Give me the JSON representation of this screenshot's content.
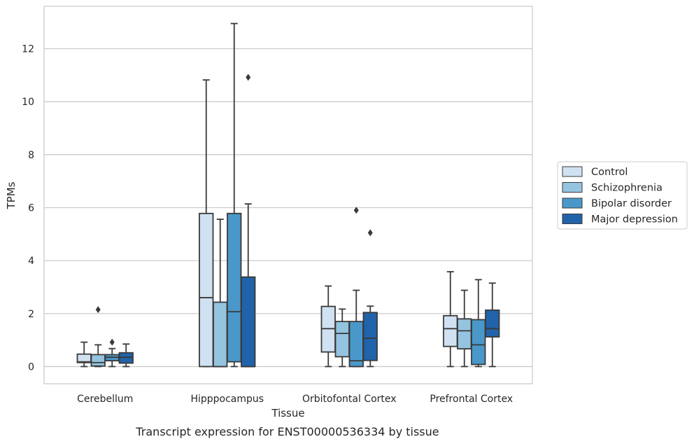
{
  "chart_data": {
    "type": "box",
    "xlabel": "Tissue",
    "ylabel": "TPMs",
    "caption": "Transcript expression for ENST00000536334 by tissue",
    "categories": [
      "Cerebellum",
      "Hipppocampus",
      "Orbitofontal Cortex",
      "Prefrontal Cortex"
    ],
    "ylim": [
      -0.65,
      13.6
    ],
    "yticks": [
      0,
      2,
      4,
      6,
      8,
      10,
      12
    ],
    "grid": "horizontal",
    "legend_position": "right",
    "series": [
      {
        "name": "Control",
        "color": "#d0e1f2",
        "boxes": [
          {
            "min": 0.0,
            "q1": 0.15,
            "median": 0.18,
            "q3": 0.47,
            "max": 0.92,
            "outliers": []
          },
          {
            "min": 0.0,
            "q1": 0.0,
            "median": 2.6,
            "q3": 5.78,
            "max": 10.82,
            "outliers": []
          },
          {
            "min": 0.0,
            "q1": 0.55,
            "median": 1.43,
            "q3": 2.27,
            "max": 3.04,
            "outliers": []
          },
          {
            "min": 0.0,
            "q1": 0.76,
            "median": 1.43,
            "q3": 1.92,
            "max": 3.58,
            "outliers": []
          }
        ]
      },
      {
        "name": "Schizophrenia",
        "color": "#94c4df",
        "boxes": [
          {
            "min": 0.0,
            "q1": 0.02,
            "median": 0.15,
            "q3": 0.45,
            "max": 0.82,
            "outliers": [
              2.15
            ]
          },
          {
            "min": 0.0,
            "q1": 0.0,
            "median": 0.0,
            "q3": 2.43,
            "max": 5.56,
            "outliers": []
          },
          {
            "min": 0.0,
            "q1": 0.37,
            "median": 1.25,
            "q3": 1.7,
            "max": 2.17,
            "outliers": []
          },
          {
            "min": 0.0,
            "q1": 0.67,
            "median": 1.35,
            "q3": 1.8,
            "max": 2.88,
            "outliers": []
          }
        ]
      },
      {
        "name": "Bipolar disorder",
        "color": "#4a98c9",
        "boxes": [
          {
            "min": 0.0,
            "q1": 0.22,
            "median": 0.35,
            "q3": 0.45,
            "max": 0.68,
            "outliers": [
              0.92
            ]
          },
          {
            "min": 0.0,
            "q1": 0.18,
            "median": 2.07,
            "q3": 5.78,
            "max": 12.95,
            "outliers": []
          },
          {
            "min": 0.0,
            "q1": 0.0,
            "median": 0.22,
            "q3": 1.7,
            "max": 2.88,
            "outliers": [
              5.9
            ]
          },
          {
            "min": 0.0,
            "q1": 0.08,
            "median": 0.82,
            "q3": 1.77,
            "max": 3.28,
            "outliers": []
          }
        ]
      },
      {
        "name": "Major depression",
        "color": "#2163aa",
        "boxes": [
          {
            "min": 0.0,
            "q1": 0.13,
            "median": 0.35,
            "q3": 0.52,
            "max": 0.85,
            "outliers": []
          },
          {
            "min": 0.0,
            "q1": 0.0,
            "median": 0.0,
            "q3": 3.38,
            "max": 6.14,
            "outliers": [
              10.92
            ]
          },
          {
            "min": 0.0,
            "q1": 0.23,
            "median": 1.07,
            "q3": 2.04,
            "max": 2.28,
            "outliers": [
              5.05
            ]
          },
          {
            "min": 0.0,
            "q1": 1.12,
            "median": 1.43,
            "q3": 2.13,
            "max": 3.15,
            "outliers": []
          }
        ]
      }
    ]
  }
}
